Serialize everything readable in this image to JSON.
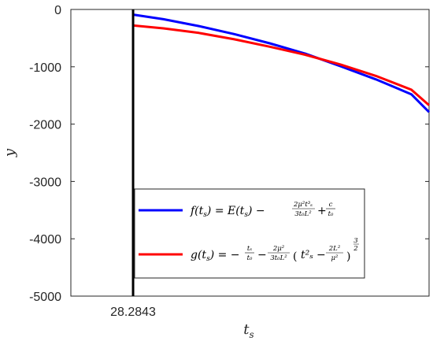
{
  "chart_data": {
    "type": "line",
    "title": "",
    "xlabel": "t",
    "xlabel_sub": "s",
    "ylabel": "y",
    "ylim": [
      -5000,
      0
    ],
    "yticks": [
      0,
      -1000,
      -2000,
      -3000,
      -4000,
      -5000
    ],
    "ytick_labels": [
      "0",
      "-1000",
      "-2000",
      "-3000",
      "-4000",
      "-5000"
    ],
    "xlim": [
      24.77,
      45.0
    ],
    "vline": {
      "x": 28.2843,
      "label": "28.2843",
      "color": "#000000"
    },
    "legend_position": "lower-right",
    "series": [
      {
        "name": "f(t_s)",
        "color": "#0000ff",
        "x": [
          28.3,
          30,
          32,
          34,
          36,
          38,
          40,
          42,
          44,
          45.0
        ],
        "y": [
          -90,
          -170,
          -290,
          -430,
          -590,
          -770,
          -990,
          -1220,
          -1480,
          -1790
        ]
      },
      {
        "name": "g(t_s)",
        "color": "#ff0000",
        "x": [
          28.3,
          30,
          32,
          34,
          36,
          38,
          40,
          42,
          44,
          45.0
        ],
        "y": [
          -280,
          -330,
          -410,
          -520,
          -650,
          -790,
          -960,
          -1160,
          -1400,
          -1670
        ]
      }
    ]
  }
}
